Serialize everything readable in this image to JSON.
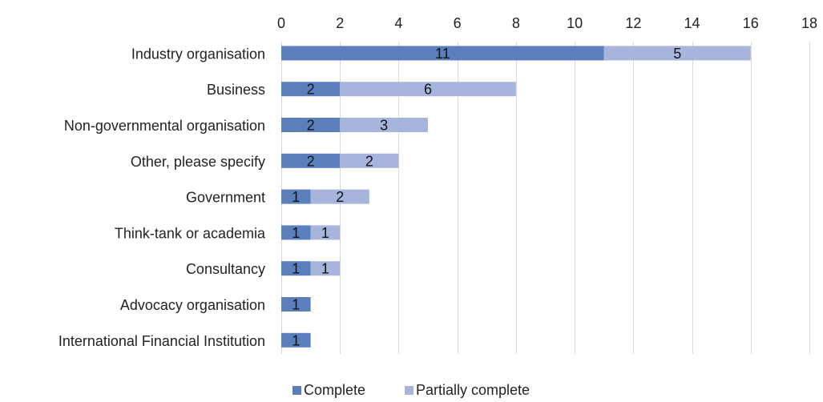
{
  "chart_data": {
    "type": "bar",
    "orientation": "horizontal",
    "stacked": true,
    "categories": [
      "Industry organisation",
      "Business",
      "Non-governmental organisation",
      "Other, please specify",
      "Government",
      "Think-tank or academia",
      "Consultancy",
      "Advocacy organisation",
      "International Financial Institution"
    ],
    "series": [
      {
        "name": "Complete",
        "color": "#5B7FBD",
        "values": [
          11,
          2,
          2,
          2,
          1,
          1,
          1,
          1,
          1
        ]
      },
      {
        "name": "Partially complete",
        "color": "#A7B4DC",
        "values": [
          5,
          6,
          3,
          2,
          2,
          1,
          1,
          null,
          null
        ]
      }
    ],
    "xlim": [
      0,
      18
    ],
    "xticks": [
      0,
      2,
      4,
      6,
      8,
      10,
      12,
      14,
      16,
      18
    ],
    "x_axis_position": "top",
    "grid": true,
    "legend_position": "bottom"
  }
}
